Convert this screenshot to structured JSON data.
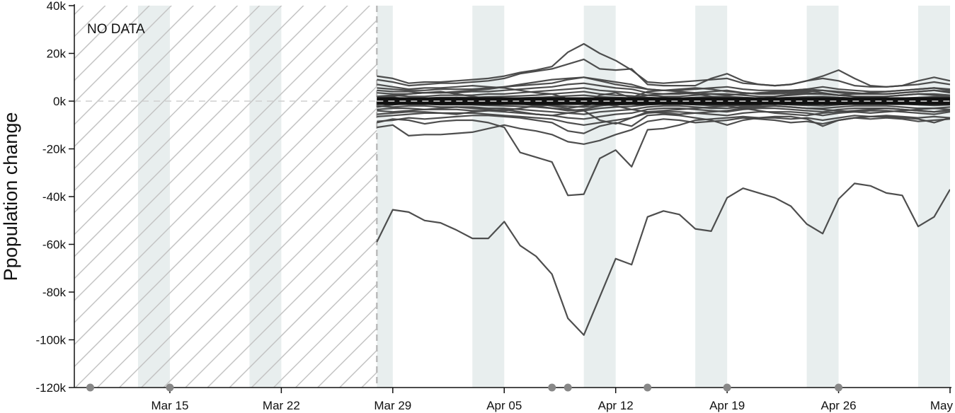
{
  "chart_data": {
    "type": "line",
    "ylabel": "Ppopulation change",
    "annotation": "NO DATA",
    "x_range": [
      "2020-03-09",
      "2020-05-03"
    ],
    "ylim": [
      -120000,
      40000
    ],
    "y_ticks": [
      40000,
      20000,
      0,
      -20000,
      -40000,
      -60000,
      -80000,
      -100000,
      -120000
    ],
    "y_tick_labels": [
      "40k",
      "20k",
      "0k",
      "-20k",
      "-40k",
      "-60k",
      "-80k",
      "-100k",
      "-120k"
    ],
    "x_ticks": [
      "2020-03-15",
      "2020-03-22",
      "2020-03-29",
      "2020-04-05",
      "2020-04-12",
      "2020-04-19",
      "2020-04-26",
      "2020-05-03"
    ],
    "x_tick_labels": [
      "Mar 15",
      "Mar 22",
      "Mar 29",
      "Apr 05",
      "Apr 12",
      "Apr 19",
      "Apr 26",
      "May"
    ],
    "no_data_range": [
      "2020-03-09",
      "2020-03-28"
    ],
    "weekend_bands": [
      [
        "2020-03-13",
        "2020-03-15"
      ],
      [
        "2020-03-20",
        "2020-03-22"
      ],
      [
        "2020-03-28",
        "2020-03-29"
      ],
      [
        "2020-04-03",
        "2020-04-05"
      ],
      [
        "2020-04-10",
        "2020-04-12"
      ],
      [
        "2020-04-17",
        "2020-04-19"
      ],
      [
        "2020-04-24",
        "2020-04-26"
      ],
      [
        "2020-05-01",
        "2020-05-03"
      ]
    ],
    "event_markers": [
      "2020-03-10",
      "2020-03-15",
      "2020-04-08",
      "2020-04-09",
      "2020-04-14",
      "2020-04-19",
      "2020-04-26"
    ],
    "reference_line": 0,
    "line_color": "#444444",
    "band_color": "#e8eeee",
    "marker_color": "#888888",
    "series": [
      {
        "dates_start": "2020-03-28",
        "values": [
          -59000,
          -45500,
          -46500,
          -50000,
          -51000,
          -54000,
          -57500,
          -57500,
          -50500,
          -60500,
          -65000,
          -72500,
          -91000,
          -98000,
          -82000,
          -66000,
          -68500,
          -48500,
          -46000,
          -47500,
          -53500,
          -54500,
          -40500,
          -36500,
          -38500,
          -40500,
          -44000,
          -51500,
          -55500,
          -41000,
          -34500,
          -35500,
          -38500,
          -39500,
          -52500,
          -48500,
          -37000
        ]
      },
      {
        "dates_start": "2020-03-28",
        "values": [
          -9000,
          -7500,
          -8000,
          -9500,
          -8500,
          -8000,
          -8000,
          -9000,
          -11000,
          -21500,
          -23500,
          -25500,
          -39500,
          -39000,
          -24000,
          -20500,
          -27500,
          -12000,
          -11500,
          -10000,
          -8000,
          -7500,
          -7000,
          -6500,
          -7000,
          -7000,
          -7500,
          -7000,
          -8000,
          -7000,
          -6000,
          -6500,
          -6000,
          -6500,
          -7000,
          -6500,
          -7000
        ]
      },
      {
        "dates_start": "2020-03-28",
        "values": [
          -11000,
          -10000,
          -14500,
          -14000,
          -14000,
          -13500,
          -13000,
          -11500,
          -10000,
          -11500,
          -12500,
          -14000,
          -17000,
          -18000,
          -16500,
          -14000,
          -12000,
          -8500,
          -7500,
          -8000,
          -9000,
          -8500,
          -8000,
          -7000,
          -7500,
          -8000,
          -9000,
          -8500,
          -9500,
          -8000,
          -7000,
          -7500,
          -7000,
          -7500,
          -8500,
          -8000,
          -7500
        ]
      },
      {
        "dates_start": "2020-03-28",
        "values": [
          10500,
          9500,
          7500,
          8000,
          8000,
          8500,
          9000,
          9500,
          10500,
          12000,
          13000,
          14500,
          20500,
          24000,
          20000,
          17000,
          13000,
          8000,
          7500,
          8000,
          8500,
          9000,
          9500,
          7500,
          7000,
          6500,
          7000,
          8500,
          9500,
          8500,
          6500,
          6000,
          6000,
          6500,
          7000,
          8000,
          7000
        ]
      },
      {
        "dates_start": "2020-03-28",
        "values": [
          9000,
          8000,
          6500,
          7000,
          7500,
          7500,
          8000,
          8500,
          9500,
          11500,
          12500,
          13500,
          15500,
          17500,
          13500,
          13000,
          13500,
          7000,
          6500,
          6500,
          6500,
          9500,
          11500,
          8500,
          7000,
          6500,
          7000,
          8500,
          10500,
          13000,
          9500,
          6500,
          6000,
          6500,
          8500,
          10000,
          8500
        ]
      },
      {
        "dates_start": "2020-03-28",
        "values": [
          -8500,
          -8000,
          -7000,
          -7500,
          -7000,
          -6500,
          -6000,
          -6000,
          -6500,
          -7000,
          -8000,
          -9000,
          -12500,
          -13500,
          -10500,
          -9000,
          -10500,
          -6000,
          -5500,
          -6000,
          -7000,
          -8000,
          -10000,
          -8000,
          -7000,
          -6500,
          -6500,
          -7500,
          -10500,
          -8000,
          -7000,
          -6500,
          -6500,
          -7000,
          -7500,
          -9000,
          -7000
        ]
      },
      {
        "dates_start": "2020-03-28",
        "values": [
          5500,
          5000,
          4500,
          4500,
          5000,
          5000,
          5000,
          5500,
          6000,
          6500,
          7000,
          7500,
          9000,
          10000,
          9000,
          8000,
          7000,
          5000,
          4500,
          4500,
          5000,
          5500,
          6000,
          5000,
          4500,
          4500,
          4500,
          5000,
          6000,
          5000,
          4500,
          4000,
          4000,
          4500,
          5000,
          5500,
          4500
        ]
      },
      {
        "dates_start": "2020-03-28",
        "values": [
          -5500,
          -5000,
          -4500,
          -4500,
          -5000,
          -5000,
          -5000,
          -5500,
          -6000,
          -6500,
          -7000,
          -7500,
          -9000,
          -10000,
          -9000,
          -8000,
          -7000,
          -5000,
          -4500,
          -4500,
          -5000,
          -5500,
          -6000,
          -5000,
          -4500,
          -4500,
          -4500,
          -5000,
          -6000,
          -5000,
          -4500,
          -4000,
          -4000,
          -4500,
          -5000,
          -5500,
          -4500
        ]
      },
      {
        "dates_start": "2020-03-28",
        "values": [
          3500,
          3000,
          3000,
          3500,
          3500,
          3500,
          4000,
          4000,
          4500,
          5000,
          5500,
          6000,
          7000,
          7500,
          6500,
          5500,
          5000,
          3500,
          3000,
          3000,
          3500,
          4000,
          4500,
          3500,
          3000,
          3000,
          3500,
          4000,
          4500,
          3500,
          3000,
          3000,
          3000,
          3500,
          4000,
          4500,
          3500
        ]
      },
      {
        "dates_start": "2020-03-28",
        "values": [
          -3500,
          -3000,
          -3000,
          -3500,
          -3500,
          -3500,
          -4000,
          -4000,
          -4500,
          -5000,
          -5500,
          -6000,
          -7000,
          -7500,
          -6500,
          -5500,
          -5000,
          -3500,
          -3000,
          -3000,
          -3500,
          -4000,
          -4500,
          -3500,
          -3000,
          -3000,
          -3500,
          -4000,
          -4500,
          -3500,
          -3000,
          -3000,
          -3000,
          -3500,
          -4000,
          -4500,
          -3500
        ]
      },
      {
        "dates_start": "2020-03-28",
        "values": [
          2000,
          2500,
          2000,
          2000,
          2500,
          2500,
          2500,
          3000,
          3000,
          3500,
          4000,
          4500,
          5000,
          5500,
          4500,
          4000,
          3500,
          2500,
          2000,
          2000,
          2500,
          3000,
          3000,
          2500,
          2000,
          2000,
          2500,
          3000,
          3000,
          2500,
          2000,
          2000,
          2000,
          2500,
          3000,
          3000,
          2500
        ]
      },
      {
        "dates_start": "2020-03-28",
        "values": [
          -2000,
          -2500,
          -2000,
          -2000,
          -2500,
          -2500,
          -2500,
          -3000,
          -3000,
          -3500,
          -4000,
          -4500,
          -5000,
          -5500,
          -4500,
          -4000,
          -3500,
          -2500,
          -2000,
          -2000,
          -2500,
          -3000,
          -3000,
          -2500,
          -2000,
          -2000,
          -2500,
          -3000,
          -3000,
          -2500,
          -2000,
          -2000,
          -2000,
          -2500,
          -3000,
          -3000,
          -2500
        ]
      },
      {
        "dates_start": "2020-03-28",
        "values": [
          1000,
          1500,
          1000,
          1200,
          1500,
          1500,
          1500,
          1800,
          2000,
          2200,
          2500,
          3000,
          3500,
          4000,
          3000,
          2500,
          2200,
          1500,
          1200,
          1200,
          1500,
          1800,
          2000,
          1500,
          1200,
          1200,
          1500,
          1800,
          2000,
          1500,
          1200,
          1000,
          1000,
          1200,
          1500,
          1800,
          1500
        ]
      },
      {
        "dates_start": "2020-03-28",
        "values": [
          -1000,
          -1500,
          -1000,
          -1200,
          -1500,
          -1500,
          -1500,
          -1800,
          -2000,
          -2200,
          -2500,
          -3000,
          -3500,
          -4000,
          -3000,
          -2500,
          -2200,
          -1500,
          -1200,
          -1200,
          -1500,
          -1800,
          -2000,
          -1500,
          -1200,
          -1200,
          -1500,
          -1800,
          -2000,
          -1500,
          -1200,
          -1000,
          -1000,
          -1200,
          -1500,
          -1800,
          -1500
        ]
      },
      {
        "dates_start": "2020-03-28",
        "values": [
          500,
          800,
          600,
          700,
          900,
          800,
          900,
          1000,
          1100,
          1300,
          1500,
          1800,
          2200,
          2500,
          1800,
          1500,
          1300,
          900,
          700,
          700,
          900,
          1100,
          1200,
          900,
          700,
          700,
          900,
          1100,
          1200,
          900,
          700,
          600,
          600,
          700,
          900,
          1100,
          900
        ]
      },
      {
        "dates_start": "2020-03-28",
        "values": [
          -500,
          -800,
          -600,
          -700,
          -900,
          -800,
          -900,
          -1000,
          -1100,
          -1300,
          -1500,
          -1800,
          -2200,
          -2500,
          -1800,
          -1500,
          -1300,
          -900,
          -700,
          -700,
          -900,
          -1100,
          -1200,
          -900,
          -700,
          -700,
          -900,
          -1100,
          -1200,
          -900,
          -700,
          -600,
          -600,
          -700,
          -900,
          -1100,
          -900
        ]
      },
      {
        "dates_start": "2020-03-28",
        "values": [
          7000,
          6000,
          5000,
          5500,
          5500,
          6000,
          6500,
          6000,
          5500,
          4500,
          3500,
          3000,
          1000,
          -1000,
          2500,
          3500,
          1500,
          4000,
          4500,
          5000,
          5500,
          5000,
          4000,
          3500,
          3000,
          3500,
          4000,
          4500,
          3500,
          2500,
          3000,
          3500,
          4000,
          4500,
          5000,
          5500,
          5000
        ]
      },
      {
        "dates_start": "2020-03-28",
        "values": [
          -6500,
          -6000,
          -5500,
          -5000,
          -5000,
          -5500,
          -4500,
          -4000,
          -3500,
          -4500,
          -5500,
          -6000,
          -5000,
          -4000,
          -8000,
          -9500,
          -7000,
          -4500,
          -4000,
          -3500,
          -3000,
          -2500,
          -2000,
          -3000,
          -4000,
          -5000,
          -5500,
          -6000,
          -5000,
          -4500,
          -4000,
          -3500,
          -3000,
          -3500,
          -4000,
          -4500,
          -4000
        ]
      },
      {
        "dates_start": "2020-03-28",
        "values": [
          4500,
          4000,
          4000,
          3500,
          3500,
          4000,
          4500,
          5000,
          6000,
          7000,
          8000,
          9000,
          9500,
          10000,
          8500,
          7000,
          6000,
          5000,
          4500,
          4000,
          3500,
          3000,
          2500,
          3000,
          3500,
          4000,
          4500,
          5000,
          4500,
          4000,
          3500,
          3000,
          3000,
          3500,
          4000,
          4500,
          4000
        ]
      },
      {
        "dates_start": "2020-03-28",
        "values": [
          -4000,
          -4500,
          -4000,
          -3500,
          -3000,
          -2500,
          -3000,
          -3500,
          -4000,
          -3000,
          -2000,
          -1500,
          -500,
          0,
          -1000,
          -2000,
          -3500,
          -4500,
          -5000,
          -5500,
          -5000,
          -4500,
          -4000,
          -3000,
          -2500,
          -2000,
          -2500,
          -3000,
          -3500,
          -4000,
          -4500,
          -5000,
          -4500,
          -4000,
          -3500,
          -3000,
          -3500
        ]
      },
      {
        "dates_start": "2020-03-28",
        "values": [
          1500,
          2000,
          3000,
          3500,
          4000,
          3000,
          2000,
          1000,
          500,
          0,
          -1000,
          -2000,
          -3000,
          -2000,
          -500,
          500,
          1500,
          2500,
          3000,
          3500,
          3000,
          2000,
          1000,
          500,
          1000,
          2000,
          3000,
          3500,
          3000,
          2500,
          2000,
          1500,
          2000,
          2500,
          3000,
          2500,
          2000
        ]
      },
      {
        "dates_start": "2020-03-28",
        "values": [
          -2500,
          -1500,
          -500,
          500,
          1000,
          1500,
          1000,
          500,
          0,
          -1000,
          -2000,
          -3000,
          -4000,
          -3500,
          -2000,
          -1000,
          0,
          1000,
          1500,
          1000,
          500,
          -500,
          -1500,
          -2000,
          -1500,
          -500,
          500,
          1000,
          500,
          0,
          -500,
          -1000,
          -500,
          0,
          500,
          0,
          -500
        ]
      }
    ]
  }
}
